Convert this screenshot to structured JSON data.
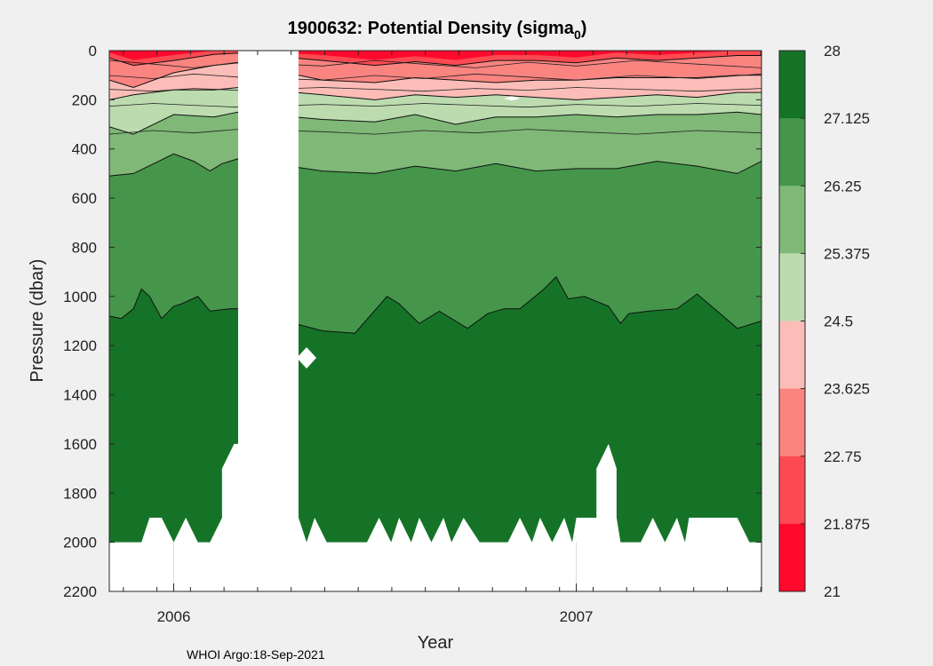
{
  "chart_data": {
    "type": "filled-contour",
    "title": "1900632: Potential Density (sigma",
    "title_subscript": "0",
    "title_close": ")",
    "xlabel": "Year",
    "ylabel": "Pressure (dbar)",
    "x_ticks": [
      "2006",
      "2007"
    ],
    "x_tick_values": [
      2006.0,
      2007.0
    ],
    "xlim": [
      2005.84,
      2007.46
    ],
    "ylim": [
      0,
      2200
    ],
    "y_ticks": [
      "0",
      "200",
      "400",
      "600",
      "800",
      "1000",
      "1200",
      "1400",
      "1600",
      "1800",
      "2000",
      "2200"
    ],
    "y_tick_values": [
      0,
      200,
      400,
      600,
      800,
      1000,
      1200,
      1400,
      1600,
      1800,
      2000,
      2200
    ],
    "colorbar": {
      "range": [
        21,
        28
      ],
      "labels": [
        "28",
        "27.125",
        "26.25",
        "25.375",
        "24.5",
        "23.625",
        "22.75",
        "21.875",
        "21"
      ],
      "levels": [
        28,
        27.125,
        26.25,
        25.375,
        24.5,
        23.625,
        22.75,
        21.875,
        21
      ],
      "colors": [
        "#157328",
        "#45964a",
        "#7fb877",
        "#bcdcb0",
        "#fcbdb8",
        "#fa8480",
        "#fd4a52",
        "#ff0a2d"
      ]
    },
    "isopycnal_depths": {
      "27.125": {
        "x": [
          2005.84,
          2005.87,
          2005.9,
          2005.92,
          2005.94,
          2005.97,
          2006.0,
          2006.02,
          2006.06,
          2006.09,
          2006.14,
          2006.16,
          2006.37,
          2006.45,
          2006.53,
          2006.56,
          2006.61,
          2006.66,
          2006.73,
          2006.78,
          2006.82,
          2006.86,
          2006.92,
          2006.95,
          2006.98,
          2007.02,
          2007.08,
          2007.11,
          2007.13,
          2007.18,
          2007.25,
          2007.3,
          2007.35,
          2007.4,
          2007.46
        ],
        "p": [
          1080,
          1090,
          1050,
          970,
          1000,
          1090,
          1040,
          1030,
          1000,
          1060,
          1050,
          1050,
          1140,
          1150,
          1000,
          1030,
          1110,
          1060,
          1130,
          1070,
          1050,
          1050,
          970,
          920,
          1010,
          1000,
          1040,
          1110,
          1070,
          1060,
          1050,
          990,
          1060,
          1130,
          1100
        ]
      },
      "26.25": {
        "x": [
          2005.84,
          2005.9,
          2006.0,
          2006.05,
          2006.09,
          2006.12,
          2006.16,
          2006.37,
          2006.5,
          2006.6,
          2006.7,
          2006.8,
          2006.9,
          2007.0,
          2007.1,
          2007.2,
          2007.3,
          2007.4,
          2007.46
        ],
        "p": [
          510,
          500,
          420,
          450,
          490,
          460,
          440,
          490,
          500,
          470,
          490,
          460,
          490,
          480,
          480,
          450,
          470,
          500,
          450
        ]
      },
      "25.375": {
        "x": [
          2005.84,
          2005.9,
          2006.0,
          2006.1,
          2006.16,
          2006.37,
          2006.5,
          2006.6,
          2006.7,
          2006.8,
          2006.9,
          2007.0,
          2007.1,
          2007.2,
          2007.3,
          2007.4,
          2007.46
        ],
        "p": [
          310,
          340,
          260,
          270,
          250,
          280,
          290,
          260,
          300,
          270,
          270,
          260,
          270,
          260,
          260,
          250,
          260
        ]
      },
      "24.5": {
        "x": [
          2005.84,
          2005.9,
          2006.0,
          2006.1,
          2006.16,
          2006.37,
          2006.5,
          2006.6,
          2006.7,
          2006.8,
          2006.9,
          2007.0,
          2007.1,
          2007.2,
          2007.3,
          2007.4,
          2007.46
        ],
        "p": [
          200,
          180,
          160,
          160,
          150,
          180,
          200,
          180,
          190,
          180,
          190,
          200,
          190,
          180,
          190,
          170,
          170
        ]
      },
      "23.625": {
        "x": [
          2005.84,
          2005.9,
          2006.0,
          2006.1,
          2006.16,
          2006.37,
          2006.5,
          2006.6,
          2006.7,
          2006.8,
          2006.9,
          2007.0,
          2007.1,
          2007.2,
          2007.3,
          2007.4,
          2007.46
        ],
        "p": [
          120,
          150,
          90,
          60,
          50,
          120,
          130,
          110,
          120,
          130,
          120,
          120,
          110,
          110,
          110,
          100,
          100
        ]
      },
      "22.75": {
        "x": [
          2005.84,
          2005.9,
          2006.0,
          2006.1,
          2006.16,
          2006.37,
          2006.5,
          2006.6,
          2006.7,
          2006.8,
          2006.9,
          2007.0,
          2007.1,
          2007.2,
          2007.3,
          2007.4,
          2007.46
        ],
        "p": [
          30,
          60,
          40,
          15,
          10,
          40,
          60,
          45,
          60,
          40,
          40,
          50,
          30,
          40,
          30,
          20,
          20
        ]
      }
    },
    "data_gaps": [
      {
        "kind": "profile_gap",
        "x_range": [
          2006.16,
          2006.31
        ],
        "p_from": 0,
        "p_to": 2200
      },
      {
        "kind": "profile_gap",
        "x_range": [
          2007.05,
          2007.1
        ],
        "p_from": 1600,
        "p_to": 2200
      },
      {
        "kind": "below_deepest_sample",
        "p_from": 1900,
        "p_to": 2200
      }
    ],
    "markers": [
      {
        "kind": "diamond",
        "x": 2006.33,
        "p": 1250
      }
    ]
  },
  "credit": "WHOI Argo:18-Sep-2021"
}
